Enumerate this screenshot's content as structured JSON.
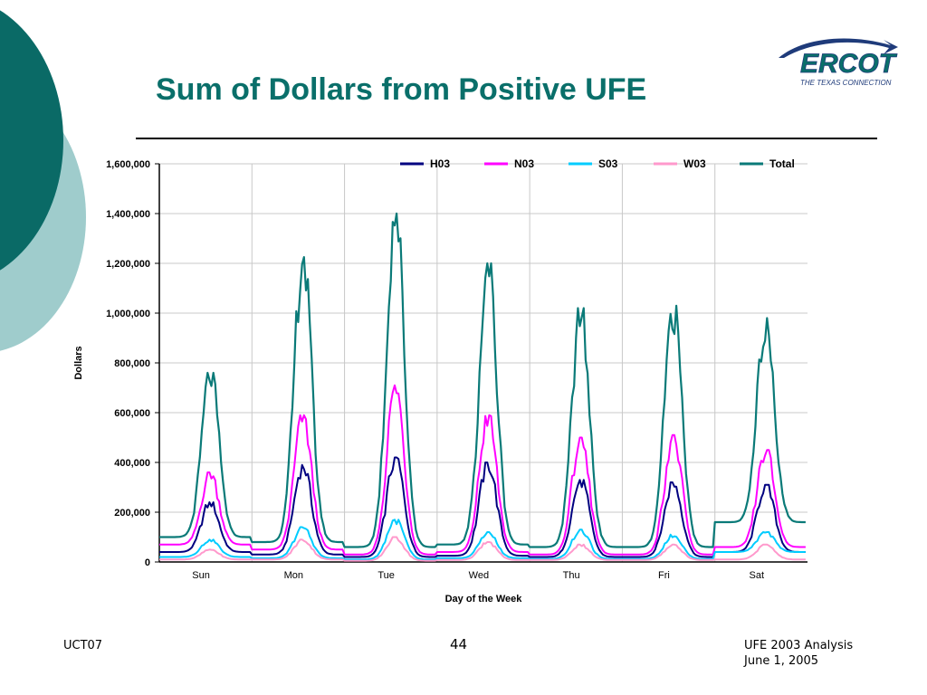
{
  "slide": {
    "title": "Sum of Dollars from Positive UFE",
    "footer_left": "UCT07",
    "page_number": "44",
    "footer_right_line1": "UFE 2003 Analysis",
    "footer_right_line2": "June 1, 2005"
  },
  "logo": {
    "text": "ERCOT",
    "tagline": "THE TEXAS CONNECTION"
  },
  "colors": {
    "teal": "#0a6f6a",
    "light_teal": "#9fcccc",
    "navy": "#1f3b7a"
  },
  "chart_data": {
    "type": "line",
    "title": "",
    "xlabel": "Day of the Week",
    "ylabel": "Dollars",
    "ylim": [
      0,
      1600000
    ],
    "yticks": [
      0,
      200000,
      400000,
      600000,
      800000,
      1000000,
      1200000,
      1400000,
      1600000
    ],
    "ytick_labels": [
      "0",
      "200,000",
      "400,000",
      "600,000",
      "800,000",
      "1,000,000",
      "1,200,000",
      "1,400,000",
      "1,600,000"
    ],
    "categories": [
      "Sun",
      "Mon",
      "Tue",
      "Wed",
      "Thu",
      "Fri",
      "Sat"
    ],
    "grid": true,
    "legend_position": "top",
    "series": [
      {
        "name": "H03",
        "color": "#000080",
        "daily_peaks": [
          240000,
          390000,
          420000,
          400000,
          330000,
          320000,
          310000
        ],
        "daily_troughs": [
          40000,
          30000,
          20000,
          25000,
          20000,
          20000,
          40000
        ]
      },
      {
        "name": "N03",
        "color": "#ff00ff",
        "daily_peaks": [
          360000,
          590000,
          710000,
          590000,
          500000,
          510000,
          450000
        ],
        "daily_troughs": [
          70000,
          50000,
          30000,
          40000,
          30000,
          30000,
          60000
        ]
      },
      {
        "name": "S03",
        "color": "#00ccff",
        "daily_peaks": [
          90000,
          140000,
          170000,
          120000,
          130000,
          110000,
          120000
        ],
        "daily_troughs": [
          20000,
          15000,
          10000,
          15000,
          12000,
          12000,
          40000
        ]
      },
      {
        "name": "W03",
        "color": "#ff99cc",
        "daily_peaks": [
          50000,
          90000,
          100000,
          80000,
          70000,
          70000,
          70000
        ],
        "daily_troughs": [
          10000,
          10000,
          5000,
          8000,
          8000,
          8000,
          10000
        ]
      },
      {
        "name": "Total",
        "color": "#0a7a78",
        "daily_peaks": [
          760000,
          1230000,
          1420000,
          1200000,
          1020000,
          1030000,
          980000
        ],
        "daily_troughs": [
          100000,
          80000,
          60000,
          70000,
          60000,
          60000,
          160000
        ]
      }
    ]
  }
}
